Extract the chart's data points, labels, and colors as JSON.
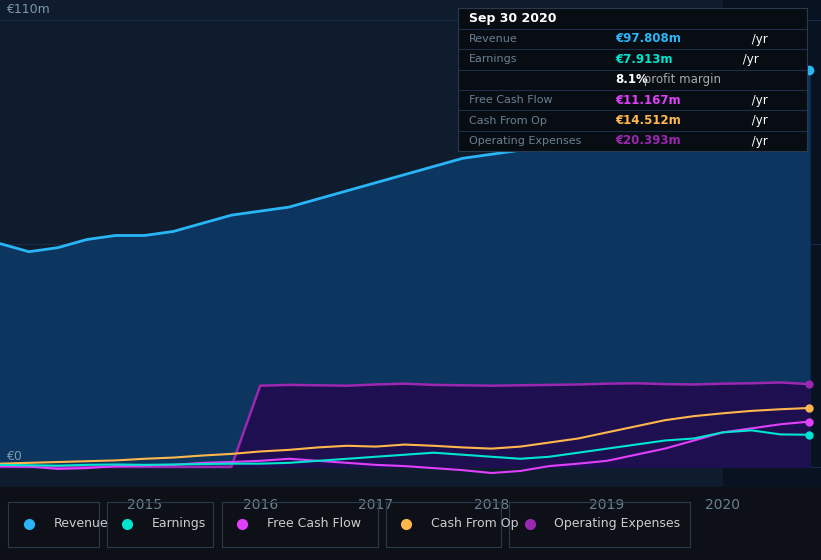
{
  "bg_color": "#0d1117",
  "plot_bg_color": "#0e1c2e",
  "grid_color": "#1a2e4a",
  "years": [
    2013.75,
    2014.0,
    2014.25,
    2014.5,
    2014.75,
    2015.0,
    2015.25,
    2015.5,
    2015.75,
    2016.0,
    2016.25,
    2016.5,
    2016.75,
    2017.0,
    2017.25,
    2017.5,
    2017.75,
    2018.0,
    2018.25,
    2018.5,
    2018.75,
    2019.0,
    2019.25,
    2019.5,
    2019.75,
    2020.0,
    2020.25,
    2020.5,
    2020.75
  ],
  "revenue": [
    55,
    53,
    54,
    56,
    57,
    57,
    58,
    60,
    62,
    63,
    64,
    66,
    68,
    70,
    72,
    74,
    76,
    77,
    78,
    80,
    82,
    85,
    88,
    92,
    97,
    102,
    104,
    99,
    97.808
  ],
  "earnings": [
    0.5,
    0.4,
    0.3,
    0.5,
    0.6,
    0.5,
    0.6,
    0.7,
    0.8,
    0.8,
    1.0,
    1.5,
    2.0,
    2.5,
    3.0,
    3.5,
    3.0,
    2.5,
    2.0,
    2.5,
    3.5,
    4.5,
    5.5,
    6.5,
    7.0,
    8.5,
    9.0,
    8.0,
    7.913
  ],
  "free_cash_flow": [
    0.2,
    0.1,
    -0.5,
    -0.3,
    0.2,
    0.3,
    0.5,
    1.0,
    1.2,
    1.5,
    2.0,
    1.5,
    1.0,
    0.5,
    0.2,
    -0.3,
    -0.8,
    -1.5,
    -1.0,
    0.2,
    0.8,
    1.5,
    3.0,
    4.5,
    6.5,
    8.5,
    9.5,
    10.5,
    11.167
  ],
  "cash_from_op": [
    0.8,
    1.0,
    1.2,
    1.4,
    1.6,
    2.0,
    2.3,
    2.8,
    3.2,
    3.8,
    4.2,
    4.8,
    5.2,
    5.0,
    5.5,
    5.2,
    4.8,
    4.5,
    5.0,
    6.0,
    7.0,
    8.5,
    10.0,
    11.5,
    12.5,
    13.2,
    13.8,
    14.2,
    14.512
  ],
  "operating_expenses": [
    0.0,
    0.0,
    0.0,
    0.0,
    0.0,
    0.0,
    0.0,
    0.0,
    0.0,
    20.0,
    20.2,
    20.1,
    20.0,
    20.3,
    20.5,
    20.2,
    20.1,
    20.0,
    20.1,
    20.2,
    20.3,
    20.5,
    20.6,
    20.4,
    20.3,
    20.5,
    20.6,
    20.8,
    20.393
  ],
  "revenue_color": "#29b6f6",
  "revenue_fill": "#0d3a6e",
  "earnings_color": "#00e5d0",
  "free_cash_flow_color": "#e040fb",
  "cash_from_op_color": "#ffb74d",
  "operating_expenses_color": "#9c27b0",
  "operating_expenses_fill": "#2a1a5e",
  "highlight_start": 2020.0,
  "x_min": 2013.75,
  "x_max": 2020.85,
  "y_min": -5,
  "y_max": 115,
  "y_label_top": "€110m",
  "y_label_bottom": "€0",
  "x_ticks": [
    2015,
    2016,
    2017,
    2018,
    2019,
    2020
  ],
  "info_title": "Sep 30 2020",
  "info_revenue_label": "Revenue",
  "info_revenue": "€97.808m /yr",
  "info_earnings_label": "Earnings",
  "info_earnings": "€7.913m /yr",
  "info_profit_margin": "8.1% profit margin",
  "info_fcf_label": "Free Cash Flow",
  "info_fcf": "€11.167m /yr",
  "info_cash_label": "Cash From Op",
  "info_cash": "€14.512m /yr",
  "info_opex_label": "Operating Expenses",
  "info_opex": "€20.393m /yr",
  "legend_items": [
    "Revenue",
    "Earnings",
    "Free Cash Flow",
    "Cash From Op",
    "Operating Expenses"
  ],
  "legend_colors": [
    "#29b6f6",
    "#00e5d0",
    "#e040fb",
    "#ffb74d",
    "#9c27b0"
  ]
}
